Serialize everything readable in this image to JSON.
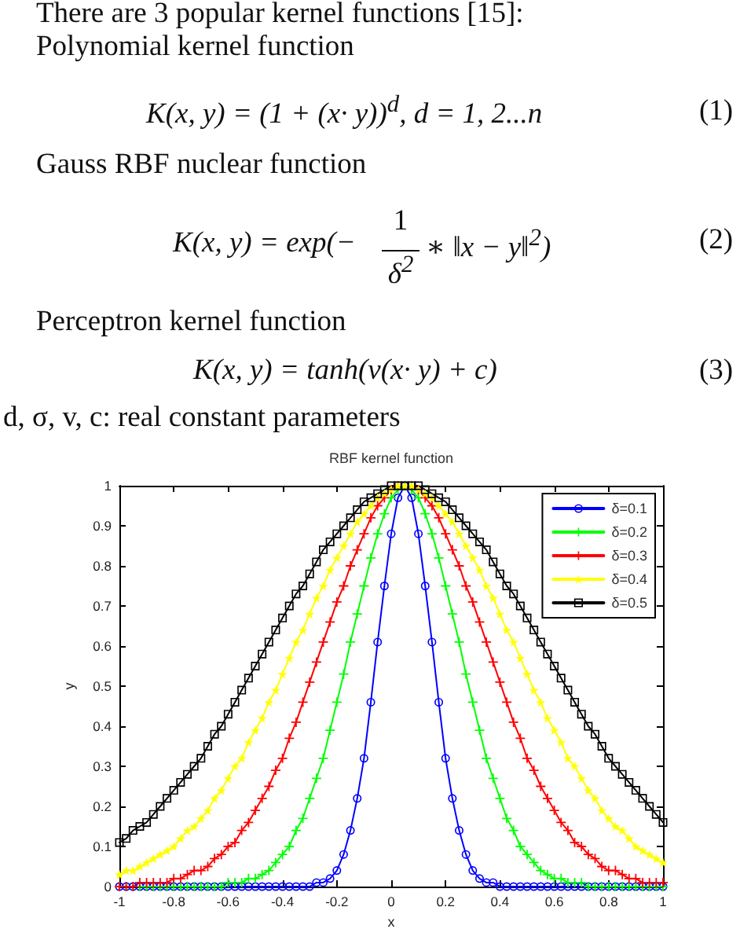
{
  "chart_data": {
    "type": "line",
    "title": "RBF kernel function",
    "xlabel": "x",
    "ylabel": "y",
    "annotations": [
      "There are 3 popular kernel functions [15]:",
      "Polynomial kernel function",
      "K(x, y) = (1 + (x· y))$^{d}$, d = 1, 2...n",
      "(1)",
      "Gauss RBF nuclear function",
      "K(x, y) = exp(−",
      "1",
      "δ$^{2}$",
      "∗ ‖x − y‖$^{2}$)",
      "(2)",
      "Perceptron kernel function",
      "K(x, y) = tanh(v(x· y) + c)",
      "(3)",
      "d, σ, v, c: real constant parameters"
    ],
    "x": [
      -1,
      -0.975,
      -0.95,
      -0.925,
      -0.9,
      -0.875,
      -0.85,
      -0.825,
      -0.8,
      -0.775,
      -0.75,
      -0.725,
      -0.7,
      -0.675,
      -0.65,
      -0.625,
      -0.6,
      -0.575,
      -0.55,
      -0.525,
      -0.5,
      -0.475,
      -0.45,
      -0.425,
      -0.4,
      -0.375,
      -0.35,
      -0.325,
      -0.3,
      -0.275,
      -0.25,
      -0.225,
      -0.2,
      -0.175,
      -0.15,
      -0.125,
      -0.1,
      -0.075,
      -0.05,
      -0.025,
      0,
      0.025,
      0.05,
      0.075,
      0.1,
      0.125,
      0.15,
      0.175,
      0.2,
      0.225,
      0.25,
      0.275,
      0.3,
      0.325,
      0.35,
      0.375,
      0.4,
      0.425,
      0.45,
      0.475,
      0.5,
      0.525,
      0.55,
      0.575,
      0.6,
      0.625,
      0.65,
      0.675,
      0.7,
      0.725,
      0.75,
      0.775,
      0.8,
      0.825,
      0.85,
      0.875,
      0.9,
      0.925,
      0.95,
      0.975,
      1
    ],
    "series": [
      {
        "name": "δ=0.1",
        "color": "#0000ff",
        "marker": "circle",
        "values": [
          0,
          0,
          0,
          0,
          0,
          0,
          0,
          0,
          0,
          0,
          0,
          0,
          0,
          0,
          0,
          0,
          0,
          0,
          0,
          0,
          0,
          0,
          0,
          0,
          0,
          0,
          0,
          0,
          0,
          0.01,
          0.01,
          0.02,
          0.04,
          0.08,
          0.14,
          0.22,
          0.32,
          0.46,
          0.61,
          0.75,
          0.88,
          0.97,
          1,
          0.97,
          0.88,
          0.75,
          0.61,
          0.46,
          0.32,
          0.22,
          0.14,
          0.08,
          0.04,
          0.02,
          0.01,
          0.01,
          0,
          0,
          0,
          0,
          0,
          0,
          0,
          0,
          0,
          0,
          0,
          0,
          0,
          0,
          0,
          0,
          0,
          0,
          0,
          0,
          0,
          0,
          0,
          0,
          0
        ]
      },
      {
        "name": "δ=0.2",
        "color": "#00ff00",
        "marker": "cross",
        "values": [
          0,
          0,
          0,
          0,
          0,
          0,
          0,
          0,
          0,
          0,
          0,
          0,
          0,
          0,
          0,
          0,
          0.01,
          0.01,
          0.01,
          0.02,
          0.02,
          0.03,
          0.04,
          0.06,
          0.08,
          0.1,
          0.14,
          0.17,
          0.22,
          0.27,
          0.32,
          0.39,
          0.46,
          0.53,
          0.61,
          0.68,
          0.75,
          0.82,
          0.88,
          0.93,
          0.97,
          0.99,
          1,
          0.99,
          0.97,
          0.93,
          0.88,
          0.82,
          0.75,
          0.68,
          0.61,
          0.53,
          0.46,
          0.39,
          0.32,
          0.27,
          0.22,
          0.17,
          0.14,
          0.1,
          0.08,
          0.06,
          0.04,
          0.03,
          0.02,
          0.02,
          0.01,
          0.01,
          0.01,
          0,
          0,
          0,
          0,
          0,
          0,
          0,
          0,
          0,
          0,
          0,
          0
        ]
      },
      {
        "name": "δ=0.3",
        "color": "#ff0000",
        "marker": "cross",
        "values": [
          0,
          0,
          0,
          0.01,
          0.01,
          0.01,
          0.01,
          0.01,
          0.02,
          0.02,
          0.03,
          0.04,
          0.04,
          0.05,
          0.07,
          0.08,
          0.1,
          0.11,
          0.14,
          0.16,
          0.19,
          0.22,
          0.25,
          0.29,
          0.32,
          0.37,
          0.41,
          0.46,
          0.51,
          0.56,
          0.61,
          0.66,
          0.71,
          0.75,
          0.8,
          0.84,
          0.88,
          0.92,
          0.95,
          0.97,
          0.99,
          1,
          1,
          1,
          0.99,
          0.97,
          0.95,
          0.92,
          0.88,
          0.84,
          0.8,
          0.75,
          0.71,
          0.66,
          0.61,
          0.56,
          0.51,
          0.46,
          0.41,
          0.37,
          0.32,
          0.29,
          0.25,
          0.22,
          0.19,
          0.16,
          0.14,
          0.11,
          0.1,
          0.08,
          0.07,
          0.05,
          0.04,
          0.04,
          0.03,
          0.02,
          0.02,
          0.01,
          0.01,
          0.01,
          0.01
        ]
      },
      {
        "name": "δ=0.4",
        "color": "#ffff00",
        "marker": "star",
        "values": [
          0.03,
          0.04,
          0.04,
          0.05,
          0.06,
          0.07,
          0.08,
          0.09,
          0.1,
          0.12,
          0.14,
          0.15,
          0.17,
          0.19,
          0.22,
          0.24,
          0.27,
          0.3,
          0.32,
          0.36,
          0.39,
          0.42,
          0.46,
          0.49,
          0.53,
          0.57,
          0.61,
          0.64,
          0.68,
          0.72,
          0.75,
          0.79,
          0.82,
          0.85,
          0.88,
          0.91,
          0.93,
          0.95,
          0.97,
          0.98,
          0.99,
          1,
          1,
          1,
          0.99,
          0.98,
          0.97,
          0.95,
          0.93,
          0.91,
          0.88,
          0.85,
          0.82,
          0.79,
          0.75,
          0.72,
          0.68,
          0.64,
          0.61,
          0.57,
          0.53,
          0.49,
          0.46,
          0.42,
          0.39,
          0.36,
          0.32,
          0.3,
          0.27,
          0.24,
          0.22,
          0.19,
          0.17,
          0.15,
          0.14,
          0.12,
          0.1,
          0.09,
          0.08,
          0.07,
          0.06
        ]
      },
      {
        "name": "δ=0.5",
        "color": "#000000",
        "marker": "square",
        "values": [
          0.11,
          0.12,
          0.14,
          0.15,
          0.16,
          0.18,
          0.2,
          0.22,
          0.24,
          0.26,
          0.28,
          0.3,
          0.32,
          0.35,
          0.38,
          0.4,
          0.43,
          0.46,
          0.49,
          0.52,
          0.55,
          0.58,
          0.61,
          0.64,
          0.67,
          0.7,
          0.73,
          0.75,
          0.78,
          0.81,
          0.84,
          0.86,
          0.88,
          0.9,
          0.92,
          0.94,
          0.96,
          0.97,
          0.98,
          0.99,
          1,
          1,
          1,
          1,
          1,
          0.99,
          0.98,
          0.97,
          0.96,
          0.94,
          0.92,
          0.9,
          0.88,
          0.86,
          0.84,
          0.81,
          0.78,
          0.75,
          0.73,
          0.7,
          0.67,
          0.64,
          0.61,
          0.58,
          0.55,
          0.52,
          0.49,
          0.46,
          0.43,
          0.4,
          0.38,
          0.35,
          0.32,
          0.3,
          0.28,
          0.26,
          0.24,
          0.22,
          0.2,
          0.18,
          0.16
        ]
      }
    ],
    "xlim": [
      -1,
      1
    ],
    "ylim": [
      0,
      1
    ],
    "xticks": [
      -1,
      -0.8,
      -0.6,
      -0.4,
      -0.2,
      0,
      0.2,
      0.4,
      0.6,
      0.8,
      1
    ],
    "yticks": [
      0,
      0.1,
      0.2,
      0.3,
      0.4,
      0.5,
      0.6,
      0.7,
      0.8,
      0.9,
      1
    ],
    "grid": false,
    "legend": "top right"
  }
}
